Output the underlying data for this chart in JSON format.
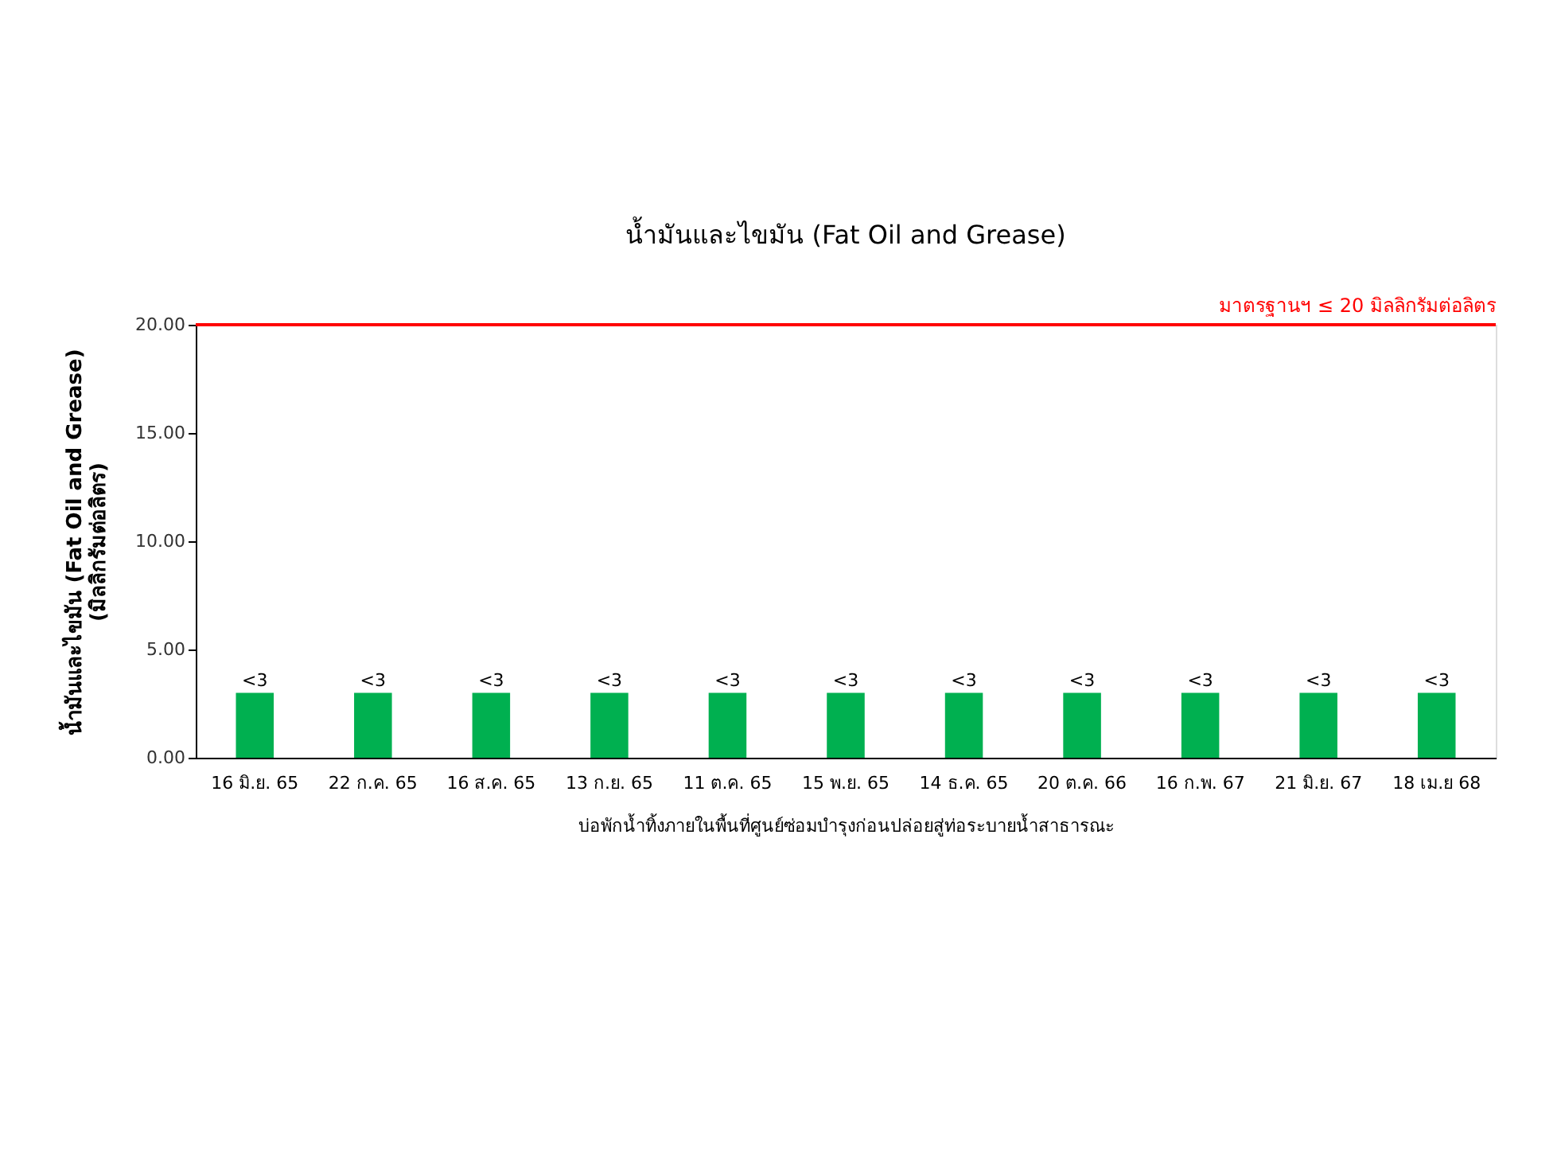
{
  "chart_data": {
    "type": "bar",
    "title": "น้ำมันและไขมัน (Fat Oil and Grease)",
    "xlabel": "บ่อพักน้ำทิ้งภายในพื้นที่ศูนย์ซ่อมบำรุงก่อนปล่อยสู่ท่อระบายน้ำสาธารณะ",
    "ylabel": "น้ำมันและไขมัน (Fat Oil and Grease)\n(มิลลิกรัมต่อลิตร)",
    "categories": [
      "16 มิ.ย. 65",
      "22 ก.ค. 65",
      "16 ส.ค. 65",
      "13 ก.ย. 65",
      "11 ต.ค. 65",
      "15 พ.ย. 65",
      "14 ธ.ค. 65",
      "20 ต.ค. 66",
      "16 ก.พ. 67",
      "21 มิ.ย. 67",
      "18 เม.ย 68"
    ],
    "values": [
      3,
      3,
      3,
      3,
      3,
      3,
      3,
      3,
      3,
      3,
      3
    ],
    "value_labels": [
      "<3",
      "<3",
      "<3",
      "<3",
      "<3",
      "<3",
      "<3",
      "<3",
      "<3",
      "<3",
      "<3"
    ],
    "color": "#00b050",
    "ylim": [
      0,
      20
    ],
    "yticks": [
      {
        "value": 0,
        "label": "0.00"
      },
      {
        "value": 5,
        "label": "5.00"
      },
      {
        "value": 10,
        "label": "10.00"
      },
      {
        "value": 15,
        "label": "15.00"
      },
      {
        "value": 20,
        "label": "20.00"
      }
    ],
    "ref_lines": [
      {
        "axis": "y",
        "value": 20,
        "label": "มาตรฐานฯ ≤ 20 มิลลิกรัมต่อลิตร",
        "color": "#ff0000"
      }
    ],
    "grid": false
  }
}
